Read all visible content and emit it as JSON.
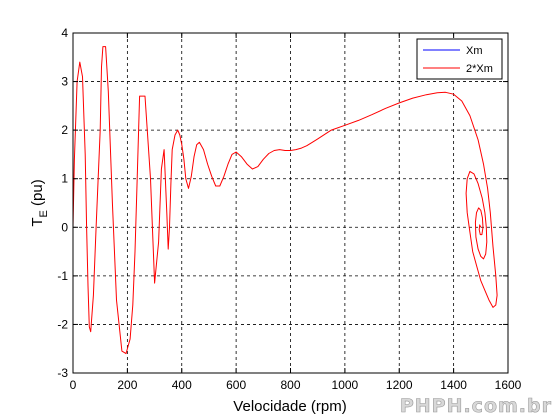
{
  "chart_data": {
    "type": "line",
    "title": "",
    "xlabel": "Velocidade (rpm)",
    "ylabel_main": "T",
    "ylabel_sub": "E",
    "ylabel_unit": " (pu)",
    "xlim": [
      0,
      1600
    ],
    "ylim": [
      -3,
      4
    ],
    "xticks": [
      0,
      200,
      400,
      600,
      800,
      1000,
      1200,
      1400,
      1600
    ],
    "yticks": [
      -3,
      -2,
      -1,
      0,
      1,
      2,
      3,
      4
    ],
    "grid": true,
    "legend_position": "top-right",
    "series": [
      {
        "name": "Xm",
        "color": "#0000ff",
        "x": [
          1500,
          1500
        ],
        "y": [
          0,
          0
        ]
      },
      {
        "name": "2*Xm",
        "color": "#ff0000",
        "x": [
          0,
          5,
          15,
          25,
          35,
          45,
          50,
          55,
          60,
          65,
          75,
          85,
          100,
          105,
          110,
          120,
          130,
          145,
          160,
          180,
          195,
          210,
          220,
          228,
          235,
          245,
          265,
          285,
          300,
          315,
          325,
          335,
          345,
          350,
          355,
          360,
          365,
          375,
          385,
          393,
          400,
          408,
          415,
          425,
          435,
          445,
          455,
          465,
          480,
          495,
          510,
          525,
          540,
          555,
          570,
          585,
          600,
          620,
          640,
          660,
          680,
          700,
          720,
          740,
          760,
          780,
          800,
          820,
          840,
          860,
          880,
          900,
          950,
          1000,
          1050,
          1100,
          1150,
          1200,
          1250,
          1300,
          1340,
          1370,
          1400,
          1430,
          1460,
          1490,
          1510,
          1525,
          1535,
          1545,
          1555,
          1560,
          1555,
          1545,
          1530,
          1515,
          1500,
          1485,
          1470,
          1460,
          1450,
          1446,
          1450,
          1460,
          1475,
          1490,
          1505,
          1515,
          1520,
          1522,
          1518,
          1510,
          1500,
          1490,
          1482,
          1480,
          1484,
          1492,
          1500,
          1506,
          1508,
          1504,
          1498,
          1494,
          1496,
          1500
        ],
        "y": [
          0,
          1.4,
          3.0,
          3.4,
          3.1,
          1.5,
          0.0,
          -1.2,
          -2.05,
          -2.15,
          -1.4,
          0.0,
          2.0,
          3.3,
          3.72,
          3.72,
          2.8,
          0.5,
          -1.5,
          -2.55,
          -2.6,
          -2.3,
          -1.6,
          -0.5,
          0.8,
          2.7,
          2.7,
          1.0,
          -1.15,
          -0.3,
          1.2,
          1.6,
          0.3,
          -0.45,
          0.0,
          0.9,
          1.6,
          1.9,
          2.0,
          1.9,
          1.7,
          1.4,
          1.0,
          0.8,
          1.05,
          1.45,
          1.7,
          1.75,
          1.6,
          1.3,
          1.05,
          0.85,
          0.85,
          1.05,
          1.3,
          1.5,
          1.55,
          1.45,
          1.3,
          1.2,
          1.25,
          1.4,
          1.52,
          1.58,
          1.6,
          1.58,
          1.58,
          1.6,
          1.63,
          1.68,
          1.75,
          1.82,
          2.0,
          2.1,
          2.2,
          2.32,
          2.45,
          2.56,
          2.66,
          2.73,
          2.77,
          2.78,
          2.74,
          2.6,
          2.3,
          1.8,
          1.3,
          0.8,
          0.3,
          -0.4,
          -1.0,
          -1.4,
          -1.6,
          -1.65,
          -1.5,
          -1.3,
          -1.1,
          -0.8,
          -0.5,
          -0.1,
          0.3,
          0.7,
          1.0,
          1.15,
          1.1,
          0.9,
          0.6,
          0.3,
          0.0,
          -0.3,
          -0.55,
          -0.65,
          -0.6,
          -0.45,
          -0.2,
          0.1,
          0.3,
          0.4,
          0.35,
          0.2,
          0.0,
          -0.15,
          -0.15,
          -0.05,
          0.05,
          0.0
        ]
      }
    ]
  },
  "watermark": "PHPH.com.br"
}
